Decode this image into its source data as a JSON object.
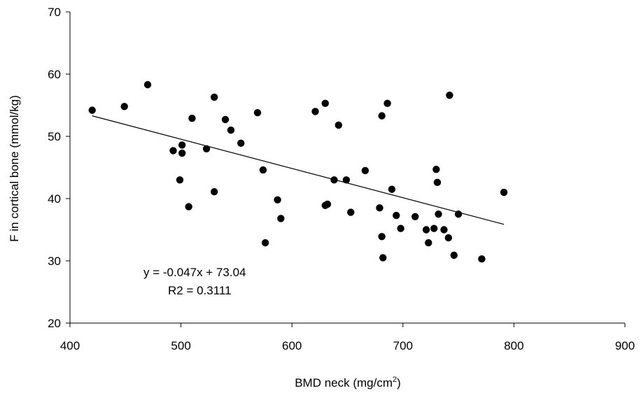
{
  "chart_data": {
    "type": "scatter",
    "title": "",
    "xlabel": "BMD neck (mg/cm",
    "xlabel_sup": "2",
    "xlabel_suffix": ")",
    "ylabel": "F in cortical bone (mmol/kg)",
    "xlim": [
      400,
      900
    ],
    "ylim": [
      20,
      70
    ],
    "xticks": [
      "400",
      "500",
      "600",
      "700",
      "800",
      "900"
    ],
    "yticks": [
      "20",
      "30",
      "40",
      "50",
      "60",
      "70"
    ],
    "grid": false,
    "legend": "none",
    "marker_color": "#000000",
    "trendline": {
      "slope": -0.047,
      "intercept": 73.04,
      "x_range": [
        420,
        791
      ],
      "equation_label": "y = -0.047x + 73.04",
      "r2_label": "R2 = 0.3111"
    },
    "points": [
      {
        "x": 420,
        "y": 54.2
      },
      {
        "x": 449,
        "y": 54.8
      },
      {
        "x": 470,
        "y": 58.3
      },
      {
        "x": 493,
        "y": 47.7
      },
      {
        "x": 499,
        "y": 43.0
      },
      {
        "x": 501,
        "y": 48.6
      },
      {
        "x": 501,
        "y": 47.3
      },
      {
        "x": 507,
        "y": 38.7
      },
      {
        "x": 510,
        "y": 52.9
      },
      {
        "x": 523,
        "y": 48.0
      },
      {
        "x": 530,
        "y": 56.3
      },
      {
        "x": 530,
        "y": 41.1
      },
      {
        "x": 540,
        "y": 52.7
      },
      {
        "x": 545,
        "y": 51.0
      },
      {
        "x": 554,
        "y": 48.9
      },
      {
        "x": 569,
        "y": 53.8
      },
      {
        "x": 574,
        "y": 44.6
      },
      {
        "x": 576,
        "y": 32.9
      },
      {
        "x": 587,
        "y": 39.8
      },
      {
        "x": 590,
        "y": 36.8
      },
      {
        "x": 621,
        "y": 54.0
      },
      {
        "x": 630,
        "y": 55.3
      },
      {
        "x": 630,
        "y": 38.9
      },
      {
        "x": 632,
        "y": 39.1
      },
      {
        "x": 638,
        "y": 43.0
      },
      {
        "x": 642,
        "y": 51.8
      },
      {
        "x": 649,
        "y": 43.0
      },
      {
        "x": 653,
        "y": 37.8
      },
      {
        "x": 666,
        "y": 44.5
      },
      {
        "x": 679,
        "y": 38.5
      },
      {
        "x": 681,
        "y": 33.9
      },
      {
        "x": 681,
        "y": 53.3
      },
      {
        "x": 682,
        "y": 30.5
      },
      {
        "x": 686,
        "y": 55.3
      },
      {
        "x": 690,
        "y": 41.5
      },
      {
        "x": 694,
        "y": 37.3
      },
      {
        "x": 698,
        "y": 35.2
      },
      {
        "x": 711,
        "y": 37.1
      },
      {
        "x": 721,
        "y": 35.0
      },
      {
        "x": 723,
        "y": 32.9
      },
      {
        "x": 728,
        "y": 35.2
      },
      {
        "x": 730,
        "y": 44.7
      },
      {
        "x": 731,
        "y": 42.6
      },
      {
        "x": 732,
        "y": 37.5
      },
      {
        "x": 737,
        "y": 35.0
      },
      {
        "x": 741,
        "y": 33.7
      },
      {
        "x": 742,
        "y": 56.6
      },
      {
        "x": 746,
        "y": 30.9
      },
      {
        "x": 750,
        "y": 37.5
      },
      {
        "x": 771,
        "y": 30.3
      },
      {
        "x": 791,
        "y": 41.0
      }
    ]
  }
}
